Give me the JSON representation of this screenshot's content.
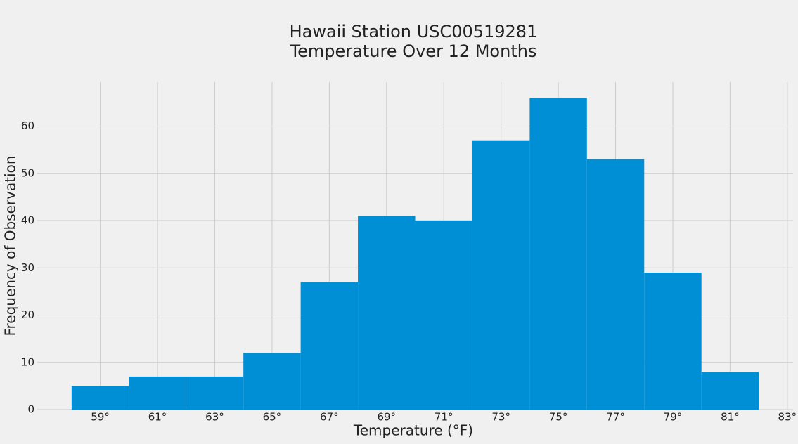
{
  "chart_data": {
    "type": "histogram",
    "title": [
      "Hawaii Station USC00519281",
      "Temperature Over 12 Months"
    ],
    "xlabel": "Temperature (°F)",
    "ylabel": "Frequency of Observation",
    "bins": [
      58,
      60,
      62,
      64,
      66,
      68,
      70,
      72,
      74,
      76,
      78,
      80,
      82
    ],
    "counts": [
      5,
      7,
      7,
      12,
      27,
      41,
      40,
      57,
      66,
      53,
      29,
      8
    ],
    "color": "#008fd5",
    "xlim": [
      56.8,
      83.2
    ],
    "xticks": [
      {
        "value": 59,
        "label": "59°"
      },
      {
        "value": 61,
        "label": "61°"
      },
      {
        "value": 63,
        "label": "63°"
      },
      {
        "value": 65,
        "label": "65°"
      },
      {
        "value": 67,
        "label": "67°"
      },
      {
        "value": 69,
        "label": "69°"
      },
      {
        "value": 71,
        "label": "71°"
      },
      {
        "value": 73,
        "label": "73°"
      },
      {
        "value": 75,
        "label": "75°"
      },
      {
        "value": 77,
        "label": "77°"
      },
      {
        "value": 79,
        "label": "79°"
      },
      {
        "value": 81,
        "label": "81°"
      },
      {
        "value": 83,
        "label": "83°"
      }
    ],
    "ylim": [
      0,
      69.3
    ],
    "yticks": [
      0,
      10,
      20,
      30,
      40,
      50,
      60
    ],
    "grid": true
  }
}
